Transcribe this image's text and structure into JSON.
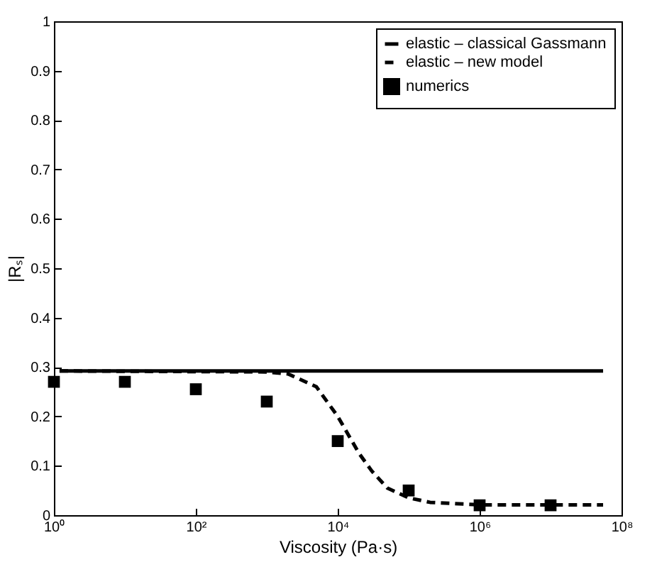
{
  "chart_data": {
    "type": "line",
    "xlabel": "Viscosity (Pa·s)",
    "ylabel": "|Rₛ|",
    "log": "x",
    "grid": false,
    "legend": "top right",
    "xlim": [
      1,
      100000000
    ],
    "xticks": [
      {
        "value": 1,
        "label": "10⁰"
      },
      {
        "value": 100,
        "label": "10²"
      },
      {
        "value": 10000,
        "label": "10⁴"
      },
      {
        "value": 1000000,
        "label": "10⁶"
      },
      {
        "value": 100000000,
        "label": "10⁸"
      }
    ],
    "ylim": [
      0,
      1
    ],
    "yticks": [
      0,
      0.1,
      0.2,
      0.3,
      0.4,
      0.5,
      0.6,
      0.7,
      0.8,
      0.9,
      1
    ],
    "series": [
      {
        "name": "elastic – classical Gassmann",
        "line_style": "solid",
        "color": "#000000",
        "x": [
          1.2,
          55000000
        ],
        "values": [
          0.292,
          0.292
        ]
      },
      {
        "name": "elastic – new model",
        "line_style": "dashed",
        "color": "#000000",
        "x": [
          1.2,
          1000,
          2000,
          5000,
          10000,
          20000,
          30000,
          50000,
          100000,
          200000,
          1000000,
          55000000
        ],
        "values": [
          0.292,
          0.29,
          0.286,
          0.26,
          0.2,
          0.125,
          0.09,
          0.055,
          0.035,
          0.026,
          0.021,
          0.021
        ]
      },
      {
        "name": "numerics",
        "type": "scatter",
        "marker": "square",
        "color": "#000000",
        "x": [
          1,
          10,
          100,
          1000,
          10000,
          100000,
          1000000,
          10000000
        ],
        "values": [
          0.27,
          0.27,
          0.255,
          0.23,
          0.15,
          0.05,
          0.02,
          0.02
        ]
      }
    ]
  }
}
